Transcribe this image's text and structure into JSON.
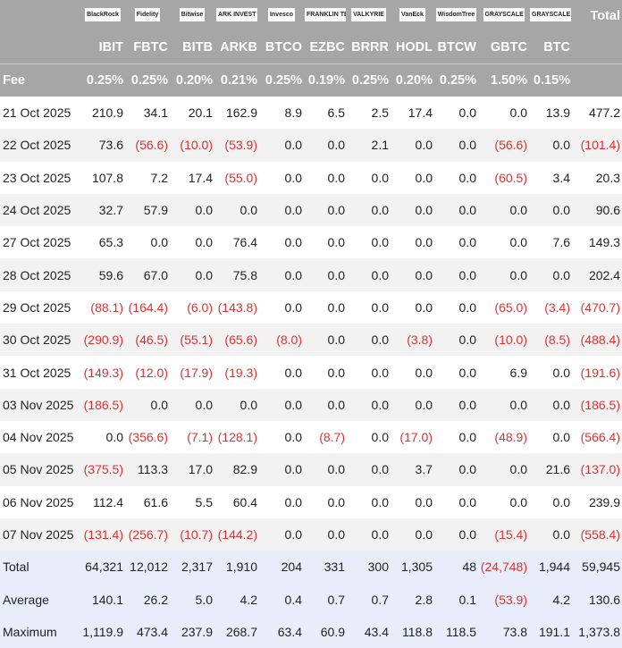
{
  "header": {
    "logos": [
      "BlackRock",
      "Fidelity",
      "Bitwise",
      "ARK INVEST",
      "Invesco",
      "FRANKLIN TEMPLETON",
      "VALKYRIE",
      "VanEck",
      "WisdomTree",
      "GRAYSCALE",
      "GRAYSCALE"
    ],
    "total": "Total",
    "tickers": [
      "IBIT",
      "FBTC",
      "BITB",
      "ARKB",
      "BTCO",
      "EZBC",
      "BRRR",
      "HODL",
      "BTCW",
      "GBTC",
      "BTC"
    ]
  },
  "fee": {
    "label": "Fee",
    "values": [
      "0.25%",
      "0.25%",
      "0.20%",
      "0.21%",
      "0.25%",
      "0.19%",
      "0.25%",
      "0.20%",
      "0.25%",
      "1.50%",
      "0.15%"
    ]
  },
  "table": {
    "rows": [
      {
        "label": "21 Oct 2025",
        "cells": [
          "210.9",
          "34.1",
          "20.1",
          "162.9",
          "8.9",
          "6.5",
          "2.5",
          "17.4",
          "0.0",
          "0.0",
          "13.9",
          "477.2"
        ]
      },
      {
        "label": "22 Oct 2025",
        "cells": [
          "73.6",
          "(56.6)",
          "(10.0)",
          "(53.9)",
          "0.0",
          "0.0",
          "2.1",
          "0.0",
          "0.0",
          "(56.6)",
          "0.0",
          "(101.4)"
        ]
      },
      {
        "label": "23 Oct 2025",
        "cells": [
          "107.8",
          "7.2",
          "17.4",
          "(55.0)",
          "0.0",
          "0.0",
          "0.0",
          "0.0",
          "0.0",
          "(60.5)",
          "3.4",
          "20.3"
        ]
      },
      {
        "label": "24 Oct 2025",
        "cells": [
          "32.7",
          "57.9",
          "0.0",
          "0.0",
          "0.0",
          "0.0",
          "0.0",
          "0.0",
          "0.0",
          "0.0",
          "0.0",
          "90.6"
        ]
      },
      {
        "label": "27 Oct 2025",
        "cells": [
          "65.3",
          "0.0",
          "0.0",
          "76.4",
          "0.0",
          "0.0",
          "0.0",
          "0.0",
          "0.0",
          "0.0",
          "7.6",
          "149.3"
        ]
      },
      {
        "label": "28 Oct 2025",
        "cells": [
          "59.6",
          "67.0",
          "0.0",
          "75.8",
          "0.0",
          "0.0",
          "0.0",
          "0.0",
          "0.0",
          "0.0",
          "0.0",
          "202.4"
        ]
      },
      {
        "label": "29 Oct 2025",
        "cells": [
          "(88.1)",
          "(164.4)",
          "(6.0)",
          "(143.8)",
          "0.0",
          "0.0",
          "0.0",
          "0.0",
          "0.0",
          "(65.0)",
          "(3.4)",
          "(470.7)"
        ]
      },
      {
        "label": "30 Oct 2025",
        "cells": [
          "(290.9)",
          "(46.5)",
          "(55.1)",
          "(65.6)",
          "(8.0)",
          "0.0",
          "0.0",
          "(3.8)",
          "0.0",
          "(10.0)",
          "(8.5)",
          "(488.4)"
        ]
      },
      {
        "label": "31 Oct 2025",
        "cells": [
          "(149.3)",
          "(12.0)",
          "(17.9)",
          "(19.3)",
          "0.0",
          "0.0",
          "0.0",
          "0.0",
          "0.0",
          "6.9",
          "0.0",
          "(191.6)"
        ]
      },
      {
        "label": "03 Nov 2025",
        "cells": [
          "(186.5)",
          "0.0",
          "0.0",
          "0.0",
          "0.0",
          "0.0",
          "0.0",
          "0.0",
          "0.0",
          "0.0",
          "0.0",
          "(186.5)"
        ]
      },
      {
        "label": "04 Nov 2025",
        "cells": [
          "0.0",
          "(356.6)",
          "(7.1)",
          "(128.1)",
          "0.0",
          "(8.7)",
          "0.0",
          "(17.0)",
          "0.0",
          "(48.9)",
          "0.0",
          "(566.4)"
        ]
      },
      {
        "label": "05 Nov 2025",
        "cells": [
          "(375.5)",
          "113.3",
          "17.0",
          "82.9",
          "0.0",
          "0.0",
          "0.0",
          "3.7",
          "0.0",
          "0.0",
          "21.6",
          "(137.0)"
        ]
      },
      {
        "label": "06 Nov 2025",
        "cells": [
          "112.4",
          "61.6",
          "5.5",
          "60.4",
          "0.0",
          "0.0",
          "0.0",
          "0.0",
          "0.0",
          "0.0",
          "0.0",
          "239.9"
        ]
      },
      {
        "label": "07 Nov 2025",
        "cells": [
          "(131.4)",
          "(256.7)",
          "(10.7)",
          "(144.2)",
          "0.0",
          "0.0",
          "0.0",
          "0.0",
          "0.0",
          "(15.4)",
          "0.0",
          "(558.4)"
        ]
      }
    ],
    "summary": [
      {
        "label": "Total",
        "cells": [
          "64,321",
          "12,012",
          "2,317",
          "1,910",
          "204",
          "331",
          "300",
          "1,305",
          "48",
          "(24,748)",
          "1,944",
          "59,945"
        ]
      },
      {
        "label": "Average",
        "cells": [
          "140.1",
          "26.2",
          "5.0",
          "4.2",
          "0.4",
          "0.7",
          "0.7",
          "2.8",
          "0.1",
          "(53.9)",
          "4.2",
          "130.6"
        ]
      },
      {
        "label": "Maximum",
        "cells": [
          "1,119.9",
          "473.4",
          "237.9",
          "268.7",
          "63.4",
          "60.9",
          "43.4",
          "118.8",
          "118.5",
          "73.8",
          "191.1",
          "1,373.8"
        ]
      }
    ]
  }
}
